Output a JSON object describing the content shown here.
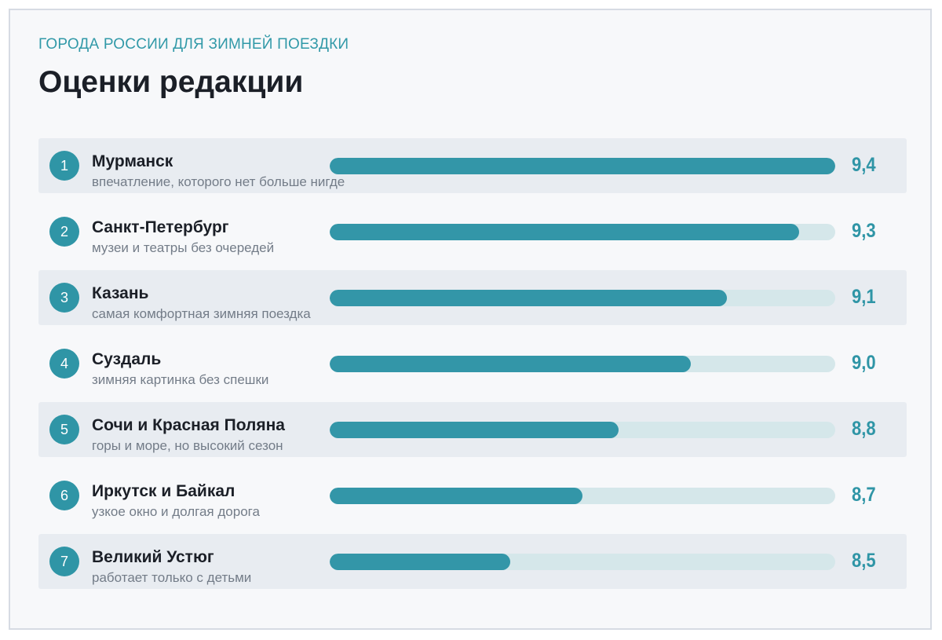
{
  "kicker": "ГОРОДА РОССИИ ДЛЯ ЗИМНЕЙ ПОЕЗДКИ",
  "title": "Оценки редакции",
  "colors": {
    "accent": "#2f95a6",
    "bar": "#3396a8",
    "track": "#d5e7ea",
    "row_shade": "#e8ecf1"
  },
  "chart_data": {
    "type": "bar",
    "orientation": "horizontal",
    "title": "Оценки редакции",
    "subtitle": "ГОРОДА РОССИИ ДЛЯ ЗИМНЕЙ ПОЕЗДКИ",
    "xlim": [
      0,
      9.4
    ],
    "grid": false,
    "items": [
      {
        "rank": "1",
        "name": "Мурманск",
        "note": "впечатление, которого нет больше нигде",
        "value": 9.4,
        "label": "9,4"
      },
      {
        "rank": "2",
        "name": "Санкт-Петербург",
        "note": "музеи и театры без очередей",
        "value": 9.3,
        "label": "9,3"
      },
      {
        "rank": "3",
        "name": "Казань",
        "note": "самая комфортная зимняя поездка",
        "value": 9.1,
        "label": "9,1"
      },
      {
        "rank": "4",
        "name": "Суздаль",
        "note": "зимняя картинка без спешки",
        "value": 9.0,
        "label": "9,0"
      },
      {
        "rank": "5",
        "name": "Сочи и Красная Поляна",
        "note": "горы и море, но высокий сезон",
        "value": 8.8,
        "label": "8,8"
      },
      {
        "rank": "6",
        "name": "Иркутск и Байкал",
        "note": "узкое окно и долгая дорога",
        "value": 8.7,
        "label": "8,7"
      },
      {
        "rank": "7",
        "name": "Великий Устюг",
        "note": "работает только с детьми",
        "value": 8.5,
        "label": "8,5"
      }
    ]
  }
}
